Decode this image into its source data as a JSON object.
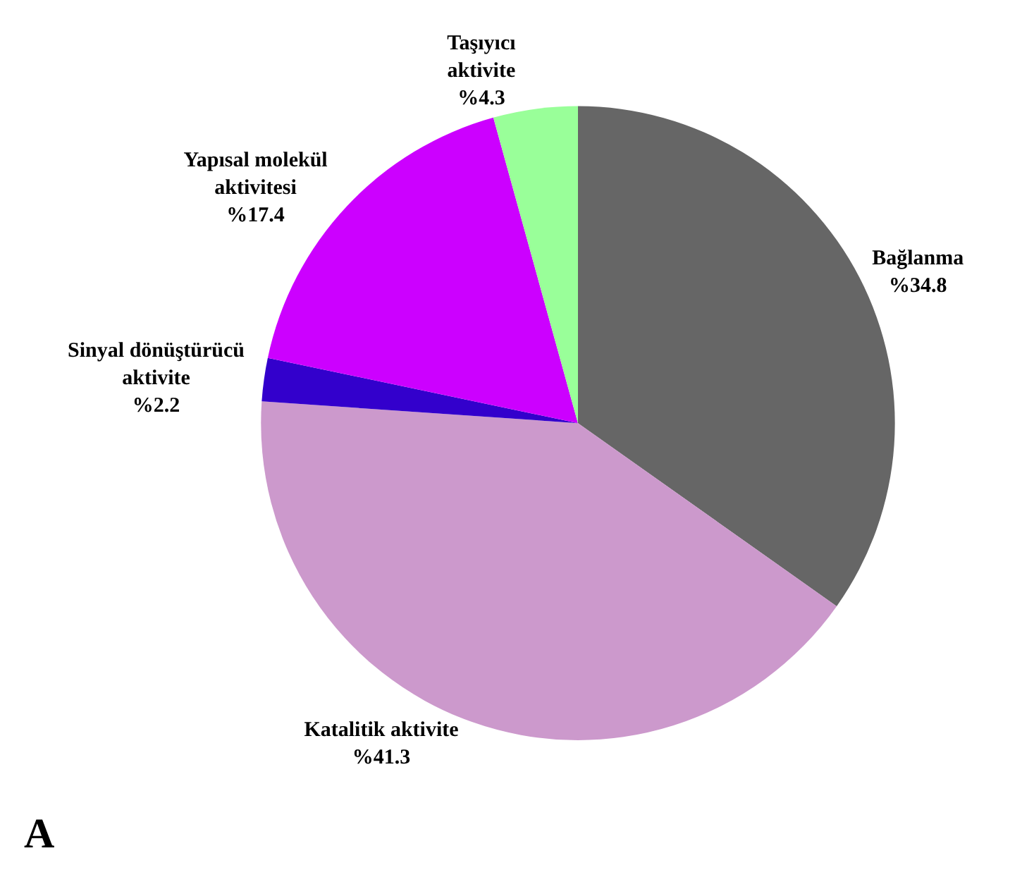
{
  "chart_data": {
    "type": "pie",
    "categories": [
      "Bağlanma",
      "Katalitik aktivite",
      "Sinyal dönüştürücü\naktivite",
      "Yapısal molekül\naktivitesi",
      "Taşıyıcı\naktivite"
    ],
    "values": [
      34.8,
      41.3,
      2.2,
      17.4,
      4.3
    ],
    "value_labels": [
      "%34.8",
      "%41.3",
      "%2.2",
      "%17.4",
      "%4.3"
    ],
    "colors": [
      "#666666",
      "#cc99cc",
      "#3300cc",
      "#cc00ff",
      "#99ff99"
    ],
    "legend": false,
    "annotations": [
      "A"
    ]
  }
}
